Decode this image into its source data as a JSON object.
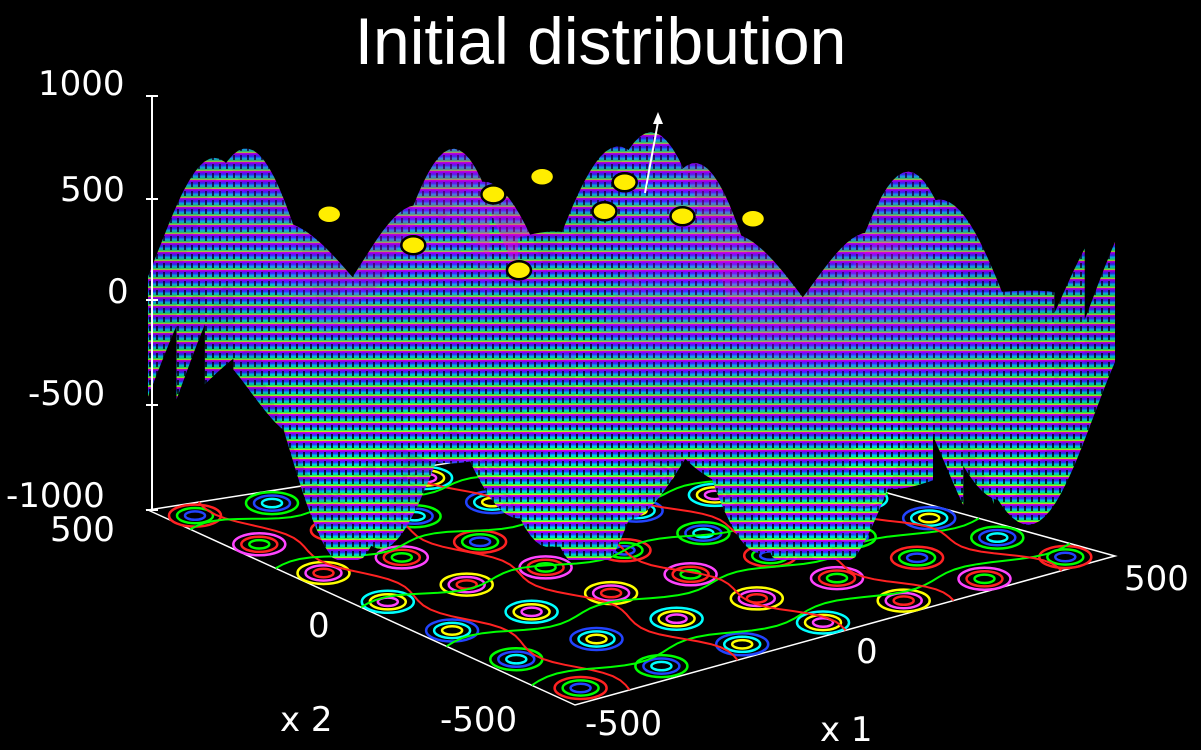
{
  "chart_data": {
    "type": "surface",
    "title": "Initial distribution",
    "xlabel": "x 1",
    "ylabel": "x 2",
    "zlabel": "",
    "xlim": [
      -500,
      500
    ],
    "ylim": [
      -500,
      500
    ],
    "zlim": [
      -1000,
      1000
    ],
    "x_ticks": [
      "-500",
      "0",
      "500"
    ],
    "y_ticks": [
      "-500",
      "0",
      "500"
    ],
    "z_ticks": [
      "1000",
      "500",
      "0",
      "-500",
      "-1000"
    ],
    "contour_projection": true,
    "surface_colormap": [
      "#ffff00",
      "#00ff66",
      "#00ccff",
      "#2233ff",
      "#8a00ff",
      "#ff00cc"
    ],
    "contour_colors": [
      "#ff2222",
      "#00ff00",
      "#2244ff",
      "#00ffff",
      "#ffff00",
      "#ff44ff"
    ],
    "marker_color": "#ffee00",
    "points": [
      {
        "x1": -400,
        "x2": 460
      },
      {
        "x1": -300,
        "x2": 330
      },
      {
        "x1": -160,
        "x2": 200
      },
      {
        "x1": -90,
        "x2": 440
      },
      {
        "x1": 20,
        "x2": 470
      },
      {
        "x1": 70,
        "x2": 330
      },
      {
        "x1": 150,
        "x2": 410
      },
      {
        "x1": 190,
        "x2": 270
      },
      {
        "x1": 300,
        "x2": 220
      }
    ],
    "annotation": "arrow from highlighted point toward global maximum"
  }
}
